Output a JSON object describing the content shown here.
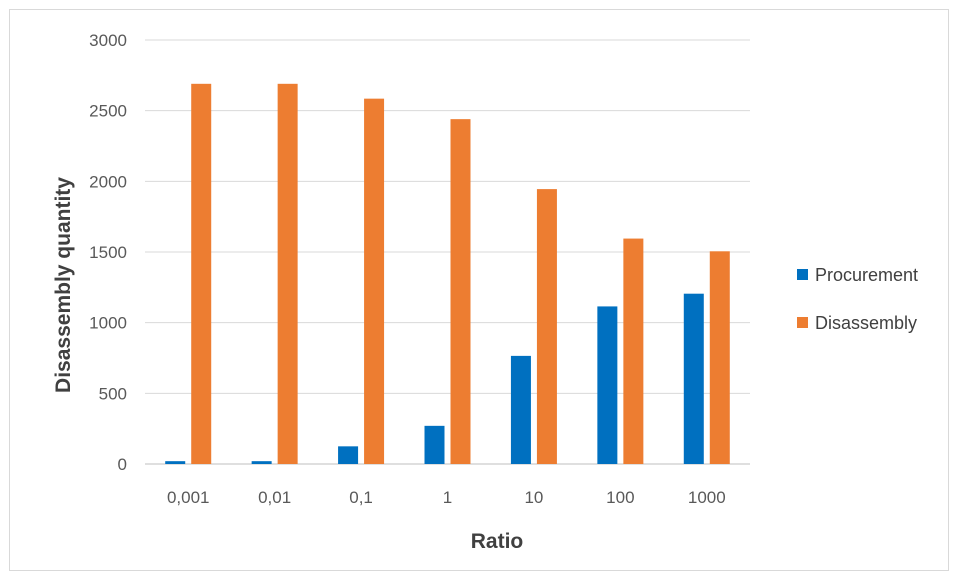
{
  "chart_data": {
    "type": "bar",
    "title": "",
    "xlabel": "Ratio",
    "ylabel": "Disassembly quantity",
    "categories": [
      "0,001",
      "0,01",
      "0,1",
      "1",
      "10",
      "100",
      "1000"
    ],
    "series": [
      {
        "name": "Procurement",
        "color": "#0070C0",
        "values": [
          20,
          20,
          125,
          270,
          765,
          1115,
          1205
        ]
      },
      {
        "name": "Disassembly",
        "color": "#ED7D31",
        "values": [
          2690,
          2690,
          2585,
          2440,
          1945,
          1595,
          1505
        ]
      }
    ],
    "ylim": [
      0,
      3000
    ],
    "yticks": [
      "0",
      "500",
      "1000",
      "1500",
      "2000",
      "2500",
      "3000"
    ],
    "grid": true,
    "legend_position": "right"
  }
}
